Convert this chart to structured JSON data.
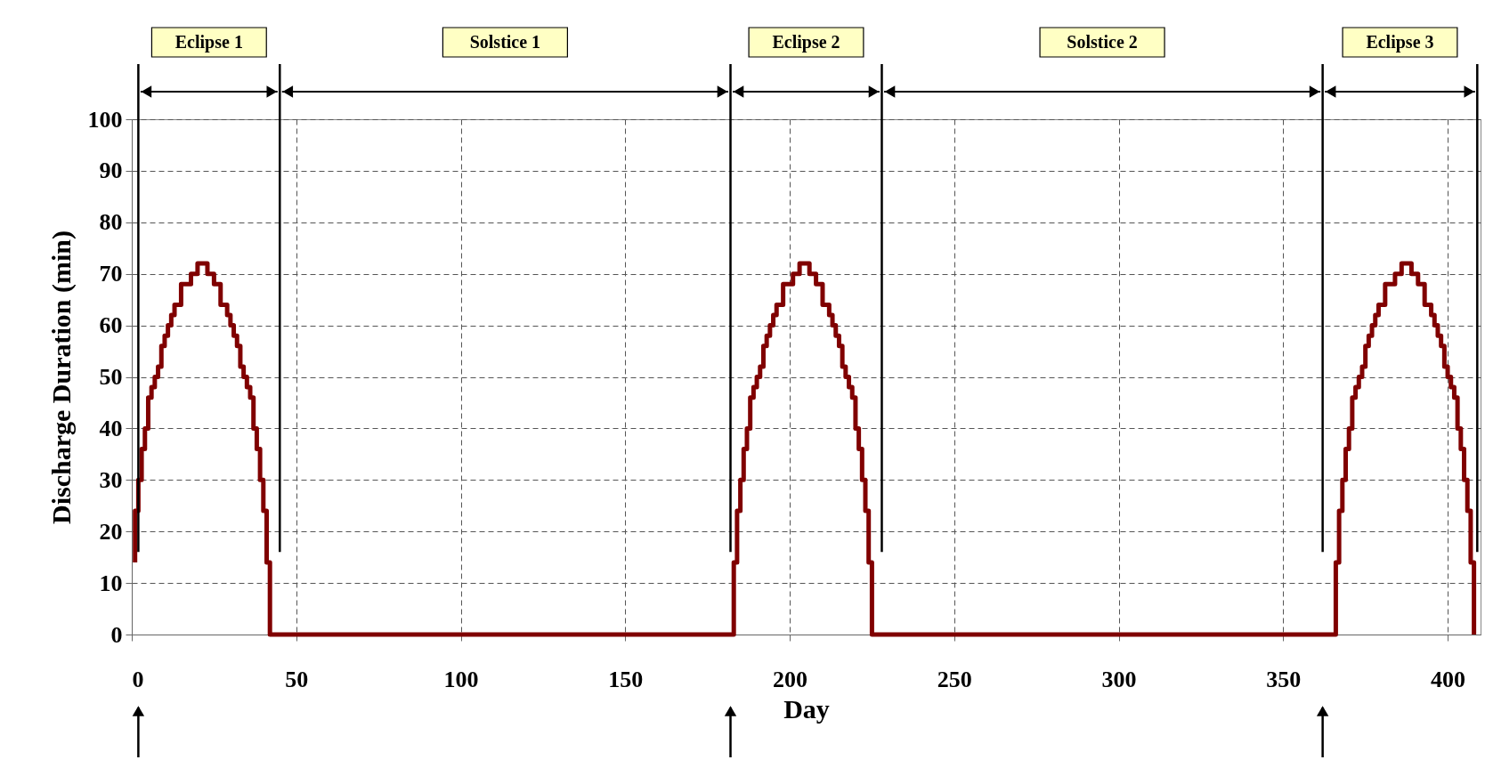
{
  "chart_data": {
    "type": "step",
    "xlabel": "Day",
    "ylabel": "Discharge Duration (min)",
    "xlim": [
      0,
      410
    ],
    "ylim": [
      0,
      100
    ],
    "xticks": [
      0,
      50,
      100,
      150,
      200,
      250,
      300,
      350,
      400
    ],
    "yticks": [
      0,
      10,
      20,
      30,
      40,
      50,
      60,
      70,
      80,
      90,
      100
    ],
    "grid": true,
    "series": [
      {
        "color": "#800000",
        "x": [
          1,
          1,
          2,
          3,
          4,
          5,
          6,
          7,
          8,
          9,
          10,
          11,
          12,
          13,
          15,
          18,
          20,
          23,
          25,
          27,
          29,
          30,
          31,
          32,
          33,
          34,
          35,
          36,
          37,
          38,
          39,
          40,
          41,
          42,
          183,
          184,
          185,
          186,
          187,
          188,
          189,
          190,
          191,
          192,
          193,
          194,
          195,
          196,
          198,
          201,
          203,
          206,
          208,
          210,
          212,
          213,
          214,
          215,
          216,
          217,
          218,
          219,
          220,
          221,
          222,
          223,
          224,
          225,
          366,
          367,
          368,
          369,
          370,
          371,
          372,
          373,
          374,
          375,
          376,
          377,
          378,
          379,
          381,
          384,
          386,
          389,
          391,
          393,
          395,
          396,
          397,
          398,
          399,
          400,
          401,
          402,
          403,
          404,
          405,
          406,
          407,
          408
        ],
        "values": [
          14,
          24,
          30,
          36,
          40,
          46,
          48,
          50,
          52,
          56,
          58,
          60,
          62,
          64,
          68,
          70,
          72,
          70,
          68,
          64,
          62,
          60,
          58,
          56,
          52,
          50,
          48,
          46,
          40,
          36,
          30,
          24,
          14,
          0,
          14,
          24,
          30,
          36,
          40,
          46,
          48,
          50,
          52,
          56,
          58,
          60,
          62,
          64,
          68,
          70,
          72,
          70,
          68,
          64,
          62,
          60,
          58,
          56,
          52,
          50,
          48,
          46,
          40,
          36,
          30,
          24,
          14,
          0,
          14,
          24,
          30,
          36,
          40,
          46,
          48,
          50,
          52,
          56,
          58,
          60,
          62,
          64,
          68,
          70,
          72,
          70,
          68,
          64,
          62,
          60,
          58,
          56,
          52,
          50,
          48,
          46,
          40,
          36,
          30,
          24,
          14,
          0
        ]
      }
    ],
    "ref_lines": [
      {
        "axis": "x",
        "value": 2
      },
      {
        "axis": "x",
        "value": 45
      },
      {
        "axis": "x",
        "value": 182
      },
      {
        "axis": "x",
        "value": 228
      },
      {
        "axis": "x",
        "value": 362
      },
      {
        "axis": "x",
        "value": 409
      }
    ],
    "annotations": [
      "Eclipse 1",
      "Solstice 1",
      "Eclipse 2",
      "Solstice 2",
      "Eclipse 3"
    ]
  }
}
